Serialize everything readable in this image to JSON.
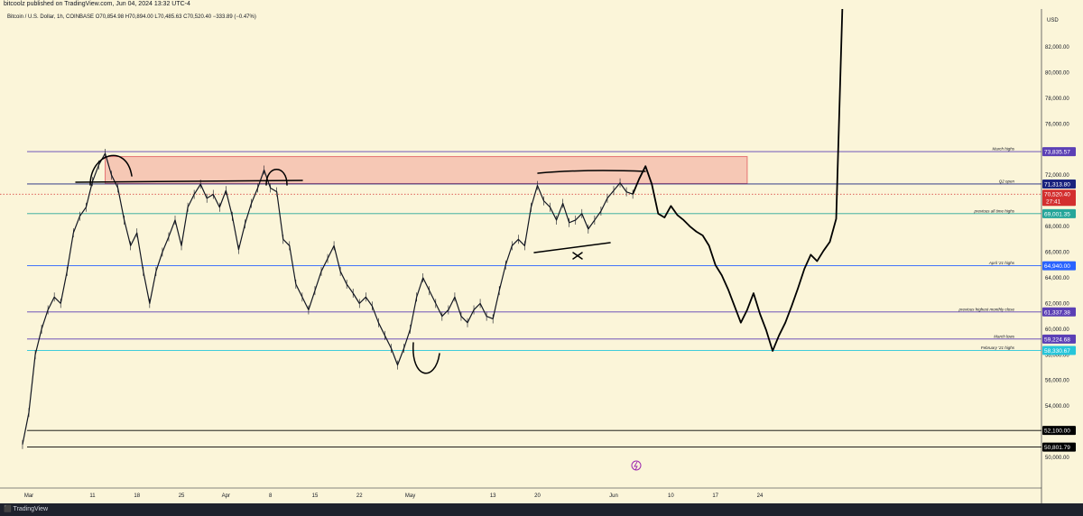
{
  "header": {
    "published_by": "bitcoolz published on TradingView.com, Jun 04, 2024 13:32 UTC-4",
    "symbol_line": "Bitcoin / U.S. Dollar, 1h, COINBASE  O70,854.98  H70,894.00  L70,485.63  C70,520.40  −333.89 (−0.47%)"
  },
  "axis": {
    "currency": "USD"
  },
  "footer": {
    "brand": "TradingView"
  },
  "chart_data": {
    "type": "line",
    "title": "Bitcoin / U.S. Dollar, 1h, COINBASE",
    "ylim": [
      48000,
      85500
    ],
    "y_ticks": [
      50000,
      52000,
      54000,
      56000,
      58000,
      60000,
      62000,
      64000,
      66000,
      68000,
      70000,
      72000,
      74000,
      76000,
      78000,
      80000,
      82000
    ],
    "y_tick_labels": [
      "50,000.00",
      "52,000.00",
      "54,000.00",
      "56,000.00",
      "58,000.00",
      "60,000.00",
      "62,000.00",
      "64,000.00",
      "66,000.00",
      "68,000.00",
      "70,000.00",
      "72,000.00",
      "74,000.00",
      "76,000.00",
      "78,000.00",
      "80,000.00",
      "82,000.00"
    ],
    "x_tick_labels": [
      "Mar",
      "11",
      "18",
      "25",
      "Apr",
      "8",
      "15",
      "22",
      "May",
      "13",
      "20",
      "Jun",
      "10",
      "17",
      "24"
    ],
    "x_ticks_day": [
      1,
      11,
      18,
      25,
      32,
      39,
      46,
      53,
      61,
      74,
      81,
      93,
      102,
      109,
      116
    ],
    "xlim_day": [
      0,
      154
    ],
    "price_series": [
      [
        0,
        51000
      ],
      [
        1,
        53500
      ],
      [
        2,
        58000
      ],
      [
        3,
        60000
      ],
      [
        4,
        61500
      ],
      [
        5,
        62500
      ],
      [
        6,
        62000
      ],
      [
        7,
        64500
      ],
      [
        8,
        67500
      ],
      [
        9,
        68800
      ],
      [
        10,
        69500
      ],
      [
        11,
        71500
      ],
      [
        12,
        72800
      ],
      [
        13,
        73700
      ],
      [
        14,
        72000
      ],
      [
        15,
        71000
      ],
      [
        16,
        68500
      ],
      [
        17,
        66500
      ],
      [
        18,
        67500
      ],
      [
        19,
        64500
      ],
      [
        20,
        62000
      ],
      [
        21,
        64500
      ],
      [
        22,
        66000
      ],
      [
        23,
        67200
      ],
      [
        24,
        68500
      ],
      [
        25,
        66500
      ],
      [
        26,
        69500
      ],
      [
        27,
        70500
      ],
      [
        28,
        71300
      ],
      [
        29,
        70200
      ],
      [
        30,
        70500
      ],
      [
        31,
        69500
      ],
      [
        32,
        70800
      ],
      [
        33,
        68800
      ],
      [
        34,
        66200
      ],
      [
        35,
        68200
      ],
      [
        36,
        69800
      ],
      [
        37,
        71000
      ],
      [
        38,
        72400
      ],
      [
        39,
        71000
      ],
      [
        40,
        70700
      ],
      [
        41,
        67000
      ],
      [
        42,
        66500
      ],
      [
        43,
        63500
      ],
      [
        44,
        62500
      ],
      [
        45,
        61500
      ],
      [
        46,
        63000
      ],
      [
        47,
        64500
      ],
      [
        48,
        65500
      ],
      [
        49,
        66500
      ],
      [
        50,
        64500
      ],
      [
        51,
        63500
      ],
      [
        52,
        62800
      ],
      [
        53,
        62000
      ],
      [
        54,
        62500
      ],
      [
        55,
        61800
      ],
      [
        56,
        60500
      ],
      [
        57,
        59500
      ],
      [
        58,
        58500
      ],
      [
        59,
        57200
      ],
      [
        60,
        58500
      ],
      [
        61,
        60000
      ],
      [
        62,
        62500
      ],
      [
        63,
        64000
      ],
      [
        64,
        63000
      ],
      [
        65,
        62000
      ],
      [
        66,
        61000
      ],
      [
        67,
        61500
      ],
      [
        68,
        62500
      ],
      [
        69,
        61000
      ],
      [
        70,
        60500
      ],
      [
        71,
        61500
      ],
      [
        72,
        62000
      ],
      [
        73,
        61000
      ],
      [
        74,
        60800
      ],
      [
        75,
        63000
      ],
      [
        76,
        65000
      ],
      [
        77,
        66500
      ],
      [
        78,
        67000
      ],
      [
        79,
        66500
      ],
      [
        80,
        69500
      ],
      [
        81,
        71200
      ],
      [
        82,
        70000
      ],
      [
        83,
        69500
      ],
      [
        84,
        68500
      ],
      [
        85,
        69800
      ],
      [
        86,
        68300
      ],
      [
        87,
        68500
      ],
      [
        88,
        69000
      ],
      [
        89,
        67800
      ],
      [
        90,
        68500
      ],
      [
        91,
        69200
      ],
      [
        92,
        70200
      ],
      [
        93,
        70800
      ],
      [
        94,
        71400
      ],
      [
        95,
        70700
      ],
      [
        96,
        70520
      ]
    ],
    "projection": [
      [
        96,
        70520
      ],
      [
        97,
        71700
      ],
      [
        98,
        72700
      ],
      [
        99,
        71300
      ],
      [
        100,
        69000
      ],
      [
        101,
        68700
      ],
      [
        102,
        69600
      ],
      [
        103,
        68900
      ],
      [
        104,
        68500
      ],
      [
        105,
        68000
      ],
      [
        106,
        67600
      ],
      [
        107,
        67300
      ],
      [
        108,
        66500
      ],
      [
        109,
        65000
      ],
      [
        110,
        64200
      ],
      [
        111,
        63100
      ],
      [
        112,
        61800
      ],
      [
        113,
        60500
      ],
      [
        114,
        61500
      ],
      [
        115,
        62800
      ],
      [
        116,
        61200
      ],
      [
        117,
        59900
      ],
      [
        118,
        58300
      ],
      [
        119,
        59500
      ],
      [
        120,
        60500
      ],
      [
        121,
        61800
      ],
      [
        122,
        63200
      ],
      [
        123,
        64700
      ],
      [
        124,
        65800
      ],
      [
        125,
        65300
      ],
      [
        126,
        66100
      ],
      [
        127,
        66800
      ],
      [
        128,
        68600
      ],
      [
        129,
        85500
      ]
    ],
    "levels": [
      {
        "price": 73835.57,
        "label": "73,835.57",
        "note": "March highs",
        "color": "#5b3fb5"
      },
      {
        "price": 71313.8,
        "label": "71,313.80",
        "note": "Q2 open",
        "color": "#1a237e"
      },
      {
        "price": 70520.4,
        "label": "70,520.40",
        "note": "",
        "color": "#d32f2f"
      },
      {
        "price": 69001.35,
        "label": "69,001.35",
        "note": "previous all time highs",
        "color": "#26a69a"
      },
      {
        "price": 64940.0,
        "label": "64,940.00",
        "note": "April '21 highs",
        "color": "#2962ff"
      },
      {
        "price": 61337.38,
        "label": "61,337.38",
        "note": "previous highest monthly close",
        "color": "#5b3fb5"
      },
      {
        "price": 59224.68,
        "label": "59,224.68",
        "note": "March lows",
        "color": "#5b3fb5"
      },
      {
        "price": 58330.67,
        "label": "58,330.67",
        "note": "February '21 highs",
        "color": "#26c6da"
      },
      {
        "price": 52100.0,
        "label": "52,100.00",
        "note": "",
        "color": "#000000"
      },
      {
        "price": 50801.79,
        "label": "50,801.79",
        "note": "",
        "color": "#000000"
      }
    ],
    "countdown": "27:41",
    "resistance_zone": {
      "day_start": 13,
      "day_end": 114,
      "price_low": 71350,
      "price_high": 73450,
      "color": "#f4b8a8"
    }
  }
}
